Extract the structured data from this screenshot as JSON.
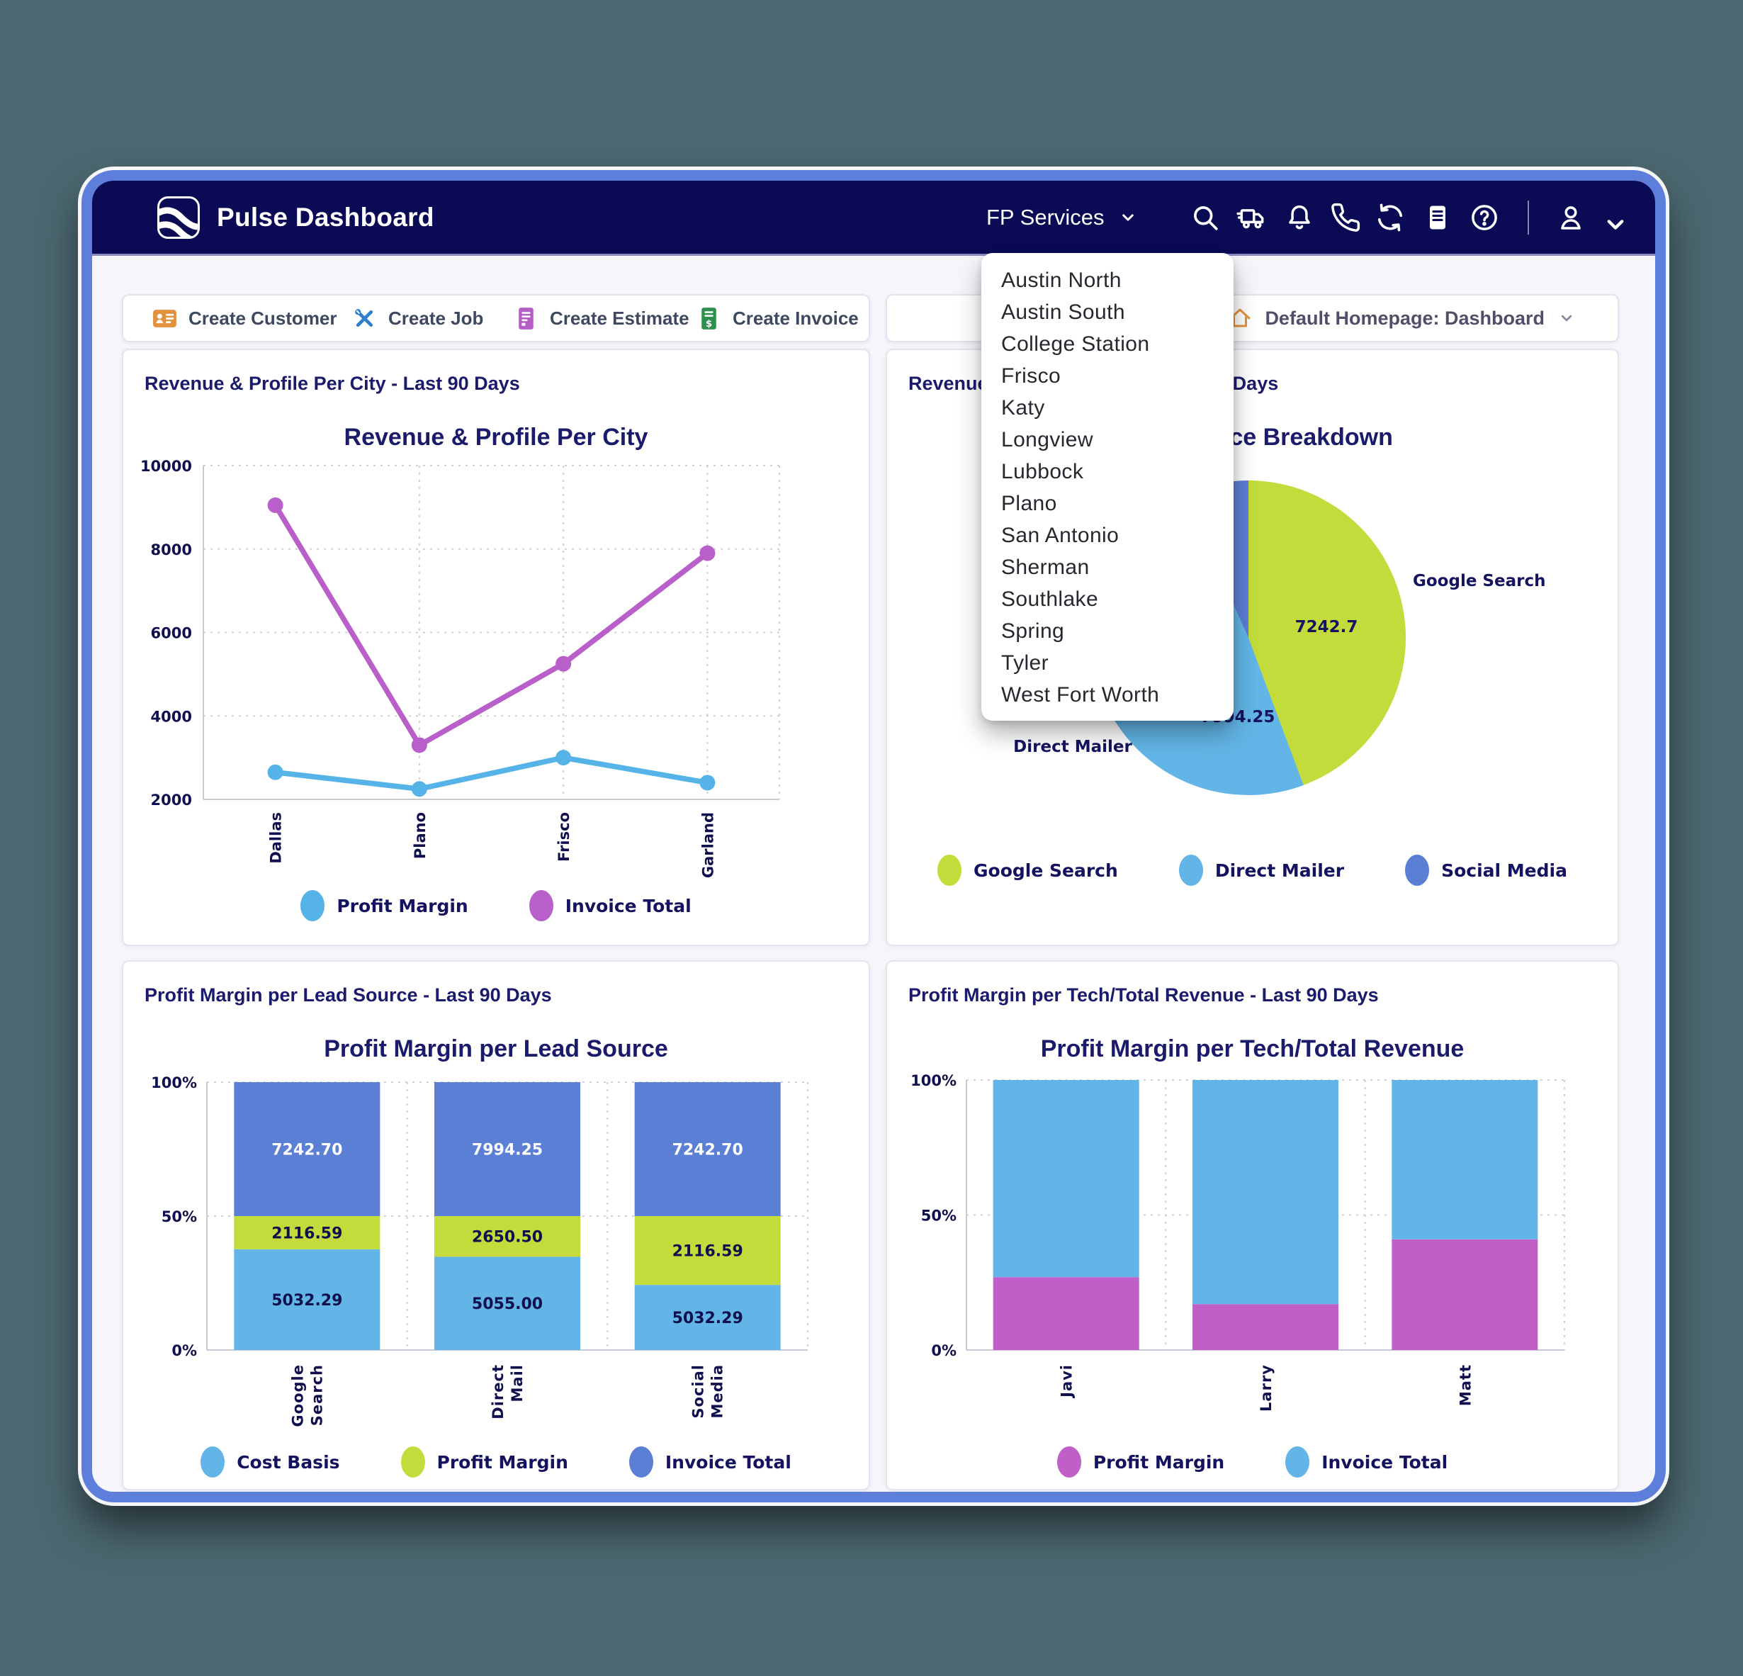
{
  "header": {
    "title": "Pulse Dashboard",
    "org_selector_label": "FP Services",
    "icons": [
      "search",
      "dispatch-truck",
      "notifications-bell",
      "phone",
      "refresh",
      "report-document",
      "help",
      "user-account"
    ]
  },
  "org_dropdown_items": [
    "Austin North",
    "Austin South",
    "College Station",
    "Frisco",
    "Katy",
    "Longview",
    "Lubbock",
    "Plano",
    "San Antonio",
    "Sherman",
    "Southlake",
    "Spring",
    "Tyler",
    "West Fort Worth"
  ],
  "toolbar": {
    "buttons": [
      {
        "label": "Create Customer",
        "icon": "customer-card",
        "color": "#e2923d"
      },
      {
        "label": "Create Job",
        "icon": "tools",
        "color": "#2f7fd0"
      },
      {
        "label": "Create Estimate",
        "icon": "estimate-document",
        "color": "#b55fc6"
      },
      {
        "label": "Create Invoice",
        "icon": "invoice-document",
        "color": "#2f8f4e"
      }
    ]
  },
  "homepage_selector_label": "Default Homepage: Dashboard",
  "colors": {
    "desktop_bg": "#4c6870",
    "frame_border": "#5d7eda",
    "header_bg": "#0a0a55",
    "title_text": "#1b1b6b",
    "light_blue": "#62b5e6",
    "green": "#c3dc3b",
    "indigo": "#5c7fd6",
    "magenta": "#c05fc8",
    "line_blue": "#56b3e8",
    "line_purple": "#b95fca",
    "orange": "#e2923d"
  },
  "chart_data": [
    {
      "id": "revenue-profit-city",
      "type": "line",
      "card_title": "Revenue & Profile Per City - Last 90 Days",
      "title": "Revenue & Profile Per City",
      "categories": [
        "Dallas",
        "Plano",
        "Frisco",
        "Garland"
      ],
      "ylim": [
        2000,
        10000
      ],
      "yticks": [
        2000,
        4000,
        6000,
        8000,
        10000
      ],
      "grid": true,
      "legend_position": "bottom",
      "series": [
        {
          "name": "Profit Margin",
          "color": "#56b3e8",
          "values": [
            2650,
            2250,
            3000,
            2400
          ]
        },
        {
          "name": "Invoice Total",
          "color": "#b95fca",
          "values": [
            9050,
            3300,
            5250,
            7900
          ]
        }
      ]
    },
    {
      "id": "lead-source-breakdown",
      "type": "pie",
      "card_title": "Revenue Per Lead Source - Last 90 Days",
      "title": "Lead Source Breakdown",
      "legend_position": "bottom",
      "slices": [
        {
          "label": "Google Search",
          "value_label": "7242.7",
          "value": 7242.7,
          "color": "#c3dc3b",
          "fraction": 0.443
        },
        {
          "label": "Direct Mailer",
          "value_label": "7994.25",
          "value": 7994.25,
          "color": "#62b5e6",
          "fraction": 0.49
        },
        {
          "label": "Social Media",
          "value_label": "",
          "value": null,
          "color": "#5c7fd6",
          "fraction": 0.067
        }
      ],
      "note": "Social Media value label hidden behind the open location dropdown"
    },
    {
      "id": "profit-margin-lead-source",
      "type": "stacked-bar",
      "card_title": "Profit Margin per Lead Source - Last 90 Days",
      "title": "Profit Margin per Lead Source",
      "categories": [
        [
          "Google",
          "Search"
        ],
        [
          "Direct",
          "Mail"
        ],
        [
          "Social",
          "Media"
        ]
      ],
      "yticks": [
        "0%",
        "50%",
        "100%"
      ],
      "legend_position": "bottom",
      "segments": [
        {
          "name": "Cost Basis",
          "color": "#62b5e6",
          "label_color": "#10104f",
          "heights_pct": [
            37.6,
            34.8,
            24.3
          ],
          "value_labels": [
            "5032.29",
            "5055.00",
            "5032.29"
          ]
        },
        {
          "name": "Profit Margin",
          "color": "#c3dc3b",
          "label_color": "#10104f",
          "heights_pct": [
            12.4,
            15.2,
            25.7
          ],
          "value_labels": [
            "2116.59",
            "2650.50",
            "2116.59"
          ]
        },
        {
          "name": "Invoice Total",
          "color": "#5c7fd6",
          "label_color": "#ffffff",
          "heights_pct": [
            50,
            50,
            50
          ],
          "value_labels": [
            "7242.70",
            "7994.25",
            "7242.70"
          ]
        }
      ]
    },
    {
      "id": "profit-margin-tech",
      "type": "stacked-bar",
      "card_title": "Profit Margin per Tech/Total Revenue - Last 90 Days",
      "title": "Profit Margin per Tech/Total Revenue",
      "categories": [
        [
          "Javi"
        ],
        [
          "Larry"
        ],
        [
          "Matt"
        ]
      ],
      "yticks": [
        "0%",
        "50%",
        "100%"
      ],
      "legend_position": "bottom",
      "segments": [
        {
          "name": "Profit Margin",
          "color": "#c05fc8",
          "label_color": "#ffffff",
          "heights_pct": [
            27,
            17,
            41
          ],
          "value_labels": [
            "",
            "",
            ""
          ]
        },
        {
          "name": "Invoice Total",
          "color": "#62b5e6",
          "label_color": "#ffffff",
          "heights_pct": [
            73,
            83,
            59
          ],
          "value_labels": [
            "",
            "",
            ""
          ]
        }
      ]
    }
  ]
}
